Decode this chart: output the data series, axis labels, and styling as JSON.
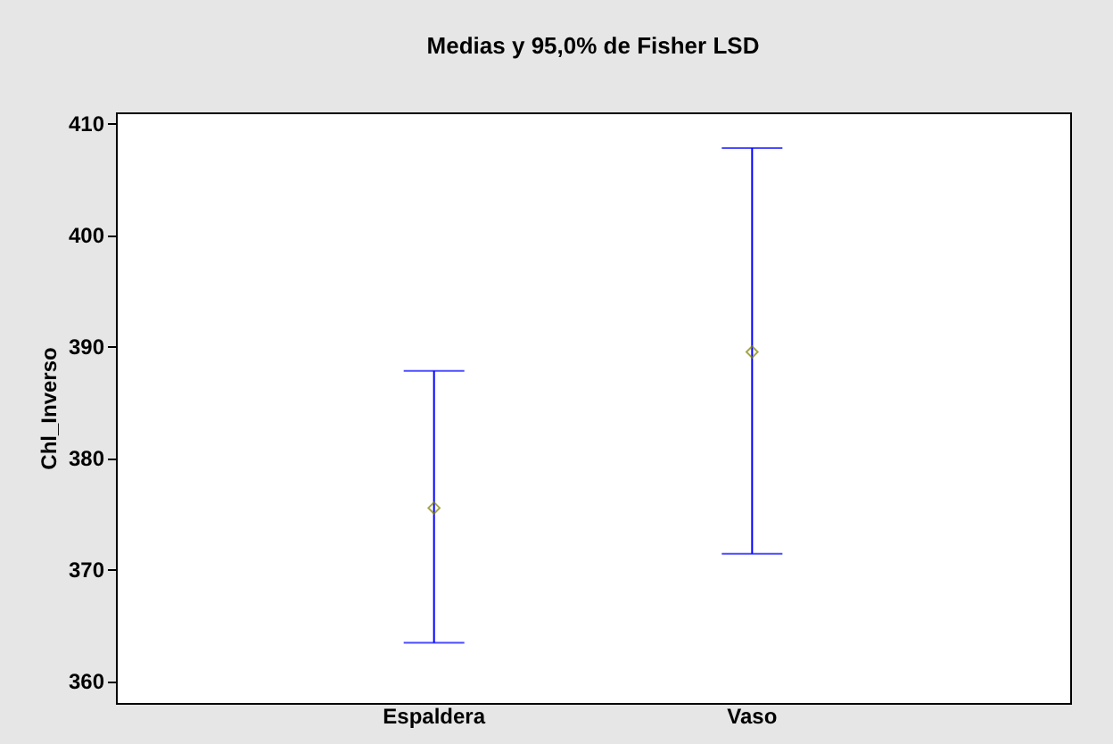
{
  "chart_data": {
    "type": "scatter",
    "title": "Medias y 95,0% de Fisher LSD",
    "ylabel": "Chl_Inverso",
    "categories": [
      "Espaldera",
      "Vaso"
    ],
    "series": [
      {
        "color": "#808000",
        "values": [
          375.5,
          389.5
        ],
        "errors": [
          [
            363.4,
            387.8
          ],
          [
            371.4,
            407.8
          ]
        ]
      }
    ],
    "ylim": [
      358,
      411
    ],
    "yticks": [
      360,
      370,
      380,
      390,
      400,
      410
    ],
    "marker": "diamond",
    "grid": false
  }
}
